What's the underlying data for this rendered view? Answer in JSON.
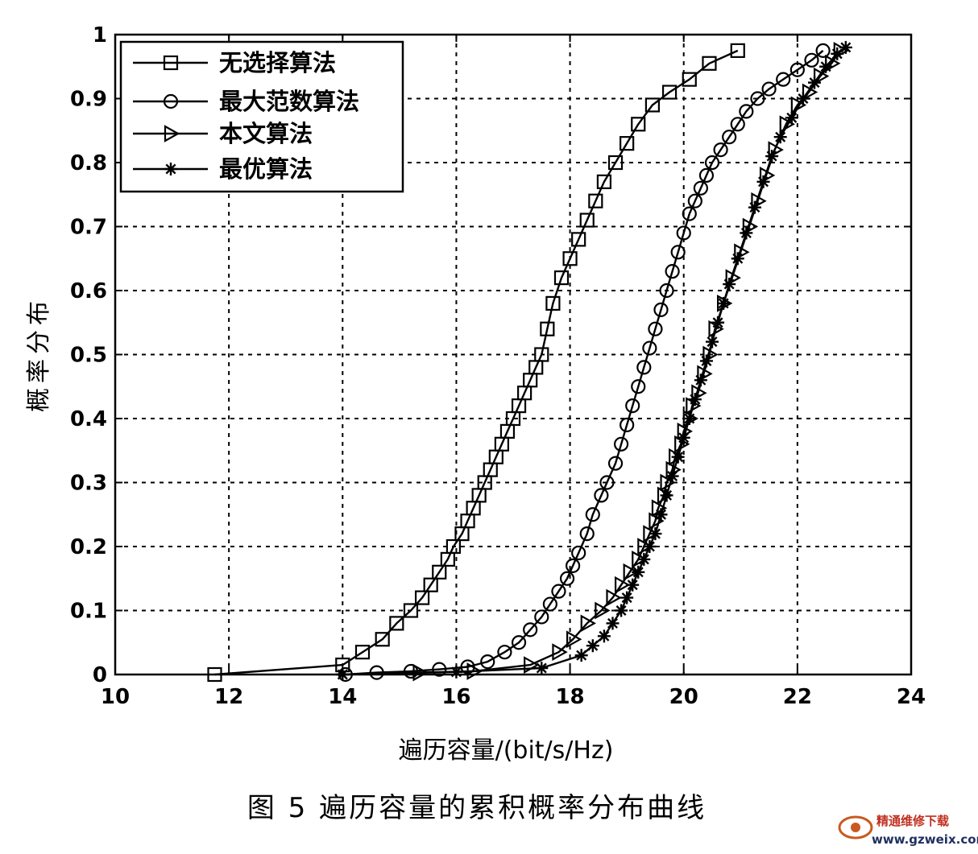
{
  "chart_data": {
    "type": "line",
    "xlabel": "遍历容量/(bit/s/Hz)",
    "ylabel": "概率分布",
    "caption": "图 5 遍历容量的累积概率分布曲线",
    "xlim": [
      10,
      24
    ],
    "ylim": [
      0,
      1
    ],
    "xticks": [
      10,
      12,
      14,
      16,
      18,
      20,
      22,
      24
    ],
    "xtick_labels": [
      "10",
      "12",
      "14",
      "16",
      "18",
      "20",
      "22",
      "24"
    ],
    "yticks": [
      0,
      0.1,
      0.2,
      0.3,
      0.4,
      0.5,
      0.6,
      0.7,
      0.8,
      0.9,
      1
    ],
    "ytick_labels": [
      "0",
      "0.1",
      "0.2",
      "0.3",
      "0.4",
      "0.5",
      "0.6",
      "0.7",
      "0.8",
      "0.9",
      "1"
    ],
    "grid": true,
    "legend_position": "top-left",
    "series": [
      {
        "name": "无选择算法",
        "marker": "square",
        "x": [
          11.75,
          14.0,
          14.35,
          14.7,
          14.95,
          15.2,
          15.4,
          15.55,
          15.7,
          15.85,
          15.95,
          16.1,
          16.2,
          16.3,
          16.4,
          16.5,
          16.6,
          16.7,
          16.8,
          16.9,
          17.0,
          17.1,
          17.2,
          17.3,
          17.4,
          17.5,
          17.6,
          17.7,
          17.85,
          18.0,
          18.15,
          18.3,
          18.45,
          18.6,
          18.8,
          19.0,
          19.2,
          19.45,
          19.75,
          20.1,
          20.45,
          20.95
        ],
        "y": [
          0.0,
          0.015,
          0.035,
          0.055,
          0.08,
          0.1,
          0.12,
          0.14,
          0.16,
          0.18,
          0.2,
          0.22,
          0.24,
          0.26,
          0.28,
          0.3,
          0.32,
          0.34,
          0.36,
          0.38,
          0.4,
          0.42,
          0.44,
          0.46,
          0.48,
          0.5,
          0.54,
          0.58,
          0.62,
          0.65,
          0.68,
          0.71,
          0.74,
          0.77,
          0.8,
          0.83,
          0.86,
          0.89,
          0.91,
          0.93,
          0.955,
          0.975
        ]
      },
      {
        "name": "最大范数算法",
        "marker": "circle",
        "x": [
          14.05,
          14.6,
          15.2,
          15.7,
          16.2,
          16.55,
          16.85,
          17.1,
          17.3,
          17.5,
          17.65,
          17.8,
          17.95,
          18.05,
          18.15,
          18.3,
          18.4,
          18.55,
          18.65,
          18.8,
          18.9,
          19.0,
          19.1,
          19.2,
          19.3,
          19.4,
          19.5,
          19.6,
          19.7,
          19.8,
          19.9,
          20.0,
          20.1,
          20.2,
          20.3,
          20.4,
          20.5,
          20.65,
          20.8,
          20.95,
          21.1,
          21.3,
          21.5,
          21.75,
          22.0,
          22.25,
          22.45
        ],
        "y": [
          0.0,
          0.003,
          0.005,
          0.008,
          0.012,
          0.02,
          0.035,
          0.05,
          0.07,
          0.09,
          0.11,
          0.13,
          0.15,
          0.17,
          0.19,
          0.22,
          0.25,
          0.28,
          0.3,
          0.33,
          0.36,
          0.39,
          0.42,
          0.45,
          0.48,
          0.51,
          0.54,
          0.57,
          0.6,
          0.63,
          0.66,
          0.69,
          0.72,
          0.74,
          0.76,
          0.78,
          0.8,
          0.82,
          0.84,
          0.86,
          0.88,
          0.9,
          0.915,
          0.93,
          0.945,
          0.96,
          0.975
        ]
      },
      {
        "name": "本文算法",
        "marker": "triangle-right",
        "x": [
          15.35,
          16.3,
          17.3,
          17.8,
          18.05,
          18.3,
          18.55,
          18.75,
          18.9,
          19.05,
          19.2,
          19.3,
          19.4,
          19.5,
          19.55,
          19.65,
          19.7,
          19.8,
          19.85,
          19.95,
          20.0,
          20.1,
          20.15,
          20.25,
          20.35,
          20.45,
          20.55,
          20.7,
          20.85,
          21.0,
          21.15,
          21.3,
          21.45,
          21.6,
          21.8,
          22.0,
          22.2,
          22.4,
          22.6,
          22.75
        ],
        "y": [
          0.003,
          0.005,
          0.015,
          0.035,
          0.055,
          0.08,
          0.1,
          0.12,
          0.14,
          0.16,
          0.18,
          0.2,
          0.22,
          0.24,
          0.26,
          0.28,
          0.3,
          0.32,
          0.34,
          0.36,
          0.38,
          0.4,
          0.42,
          0.44,
          0.47,
          0.5,
          0.54,
          0.58,
          0.62,
          0.66,
          0.7,
          0.74,
          0.78,
          0.82,
          0.86,
          0.89,
          0.91,
          0.935,
          0.955,
          0.975
        ]
      },
      {
        "name": "最优算法",
        "marker": "star",
        "x": [
          14.0,
          16.0,
          17.5,
          18.2,
          18.4,
          18.6,
          18.75,
          18.9,
          19.0,
          19.1,
          19.2,
          19.3,
          19.4,
          19.5,
          19.6,
          19.7,
          19.8,
          19.9,
          20.0,
          20.1,
          20.2,
          20.3,
          20.4,
          20.5,
          20.6,
          20.7,
          20.8,
          20.95,
          21.1,
          21.25,
          21.4,
          21.55,
          21.7,
          21.9,
          22.1,
          22.3,
          22.5,
          22.7,
          22.85
        ],
        "y": [
          0.0,
          0.004,
          0.01,
          0.03,
          0.045,
          0.06,
          0.08,
          0.1,
          0.12,
          0.14,
          0.16,
          0.18,
          0.2,
          0.22,
          0.25,
          0.28,
          0.31,
          0.34,
          0.37,
          0.4,
          0.43,
          0.46,
          0.49,
          0.52,
          0.55,
          0.58,
          0.61,
          0.65,
          0.69,
          0.73,
          0.77,
          0.81,
          0.84,
          0.87,
          0.9,
          0.925,
          0.95,
          0.97,
          0.98
        ]
      }
    ]
  },
  "watermark": {
    "text": "精通维修下载",
    "url": "www.gzweix.com",
    "color": "#c03020"
  }
}
